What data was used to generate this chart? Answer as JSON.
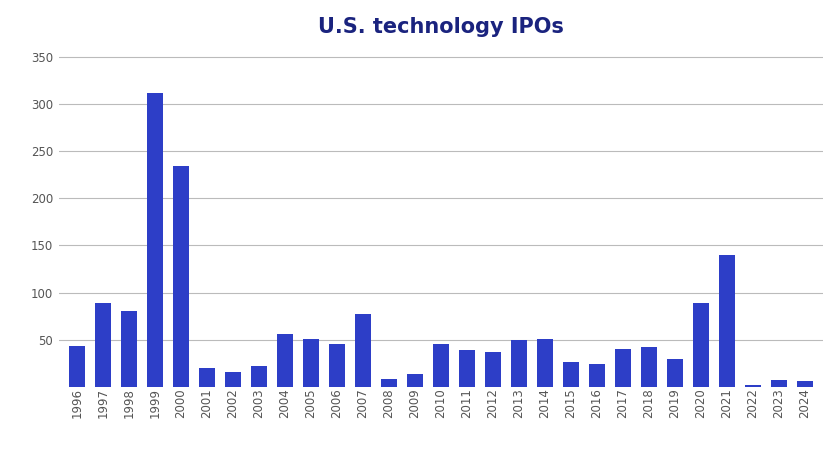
{
  "title": "U.S. technology IPOs",
  "title_color": "#1a237e",
  "bar_color": "#2d3ec7",
  "background_color": "#ffffff",
  "years": [
    1996,
    1997,
    1998,
    1999,
    2000,
    2001,
    2002,
    2003,
    2004,
    2005,
    2006,
    2007,
    2008,
    2009,
    2010,
    2011,
    2012,
    2013,
    2014,
    2015,
    2016,
    2017,
    2018,
    2019,
    2020,
    2021,
    2022,
    2023,
    2024
  ],
  "values": [
    44,
    89,
    81,
    311,
    234,
    20,
    16,
    22,
    56,
    51,
    46,
    77,
    8,
    14,
    46,
    39,
    37,
    50,
    51,
    26,
    24,
    40,
    42,
    30,
    89,
    140,
    2,
    7,
    6
  ],
  "ylim": [
    0,
    360
  ],
  "yticks": [
    50,
    100,
    150,
    200,
    250,
    300,
    350
  ],
  "grid_color": "#bbbbbb",
  "tick_label_color": "#555555",
  "tick_label_fontsize": 8.5,
  "title_fontsize": 15
}
